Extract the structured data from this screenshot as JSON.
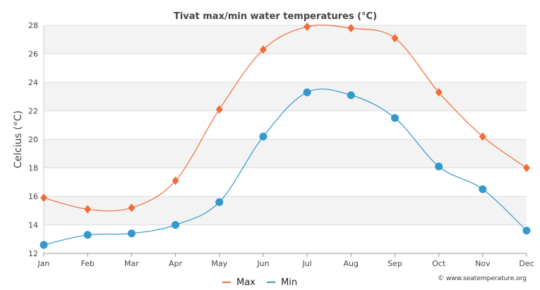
{
  "chart_data": {
    "type": "line",
    "title": "Tivat max/min water temperatures (°C)",
    "xlabel": "",
    "ylabel": "Celcius (°C)",
    "categories": [
      "Jan",
      "Feb",
      "Mar",
      "Apr",
      "May",
      "Jun",
      "Jul",
      "Aug",
      "Sep",
      "Oct",
      "Nov",
      "Dec"
    ],
    "ylim": [
      12,
      28
    ],
    "yticks": [
      12,
      14,
      16,
      18,
      20,
      22,
      24,
      26,
      28
    ],
    "grid": true,
    "legend_position": "bottom",
    "series": [
      {
        "name": "Max",
        "color": "#f26b3a",
        "marker": "diamond",
        "values": [
          15.9,
          15.1,
          15.2,
          17.1,
          22.1,
          26.3,
          27.9,
          27.8,
          27.1,
          23.3,
          20.2,
          18.0
        ]
      },
      {
        "name": "Min",
        "color": "#3399cc",
        "marker": "circle",
        "values": [
          12.6,
          13.3,
          13.4,
          14.0,
          15.6,
          20.2,
          23.3,
          23.1,
          21.5,
          18.1,
          16.5,
          13.6
        ]
      }
    ],
    "credit": "© www.seatemperature.org"
  }
}
